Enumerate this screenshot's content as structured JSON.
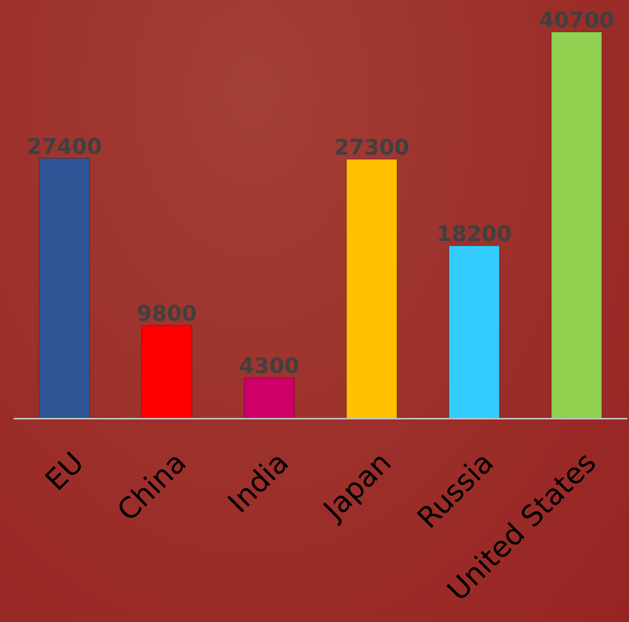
{
  "chart_data": {
    "type": "bar",
    "title": "",
    "xlabel": "",
    "ylabel": "",
    "categories": [
      "EU",
      "China",
      "India",
      "Japan",
      "Russia",
      "United States"
    ],
    "values": [
      27400,
      9800,
      4300,
      27300,
      18200,
      40700
    ],
    "colors": [
      "#2f5597",
      "#ff0000",
      "#cc0066",
      "#ffc000",
      "#33ccff",
      "#92d050"
    ],
    "ylim": [
      0,
      40700
    ],
    "grid": false,
    "legend": "none",
    "data_labels": true,
    "label_color": "#404040",
    "axis_color": "#bfbfbf",
    "background": "#a0302c"
  }
}
